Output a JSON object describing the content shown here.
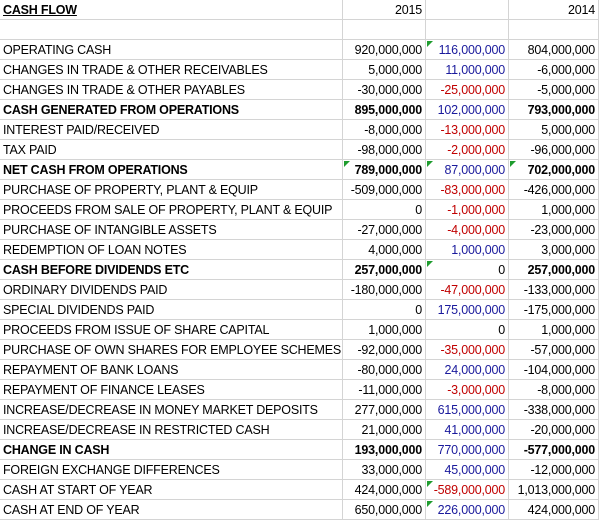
{
  "header": {
    "title": "CASH FLOW",
    "year_1": "2015",
    "year_2": "2014"
  },
  "table": {
    "rows": [
      [
        "OPERATING CASH",
        "920,000,000",
        "116,000,000",
        "804,000,000"
      ],
      [
        "CHANGES IN TRADE & OTHER RECEIVABLES",
        "5,000,000",
        "11,000,000",
        "-6,000,000"
      ],
      [
        "CHANGES IN TRADE & OTHER PAYABLES",
        "-30,000,000",
        "-25,000,000",
        "-5,000,000"
      ],
      [
        "CASH GENERATED FROM OPERATIONS",
        "895,000,000",
        "102,000,000",
        "793,000,000"
      ],
      [
        "INTEREST PAID/RECEIVED",
        "-8,000,000",
        "-13,000,000",
        "5,000,000"
      ],
      [
        "TAX PAID",
        "-98,000,000",
        "-2,000,000",
        "-96,000,000"
      ],
      [
        "NET CASH FROM OPERATIONS",
        "789,000,000",
        "87,000,000",
        "702,000,000"
      ],
      [
        "PURCHASE OF PROPERTY, PLANT & EQUIP",
        "-509,000,000",
        "-83,000,000",
        "-426,000,000"
      ],
      [
        "PROCEEDS FROM SALE OF PROPERTY, PLANT & EQUIP",
        "0",
        "-1,000,000",
        "1,000,000"
      ],
      [
        "PURCHASE OF INTANGIBLE ASSETS",
        "-27,000,000",
        "-4,000,000",
        "-23,000,000"
      ],
      [
        "REDEMPTION OF LOAN NOTES",
        "4,000,000",
        "1,000,000",
        "3,000,000"
      ],
      [
        "CASH BEFORE DIVIDENDS ETC",
        "257,000,000",
        "0",
        "257,000,000"
      ],
      [
        "ORDINARY DIVIDENDS PAID",
        "-180,000,000",
        "-47,000,000",
        "-133,000,000"
      ],
      [
        "SPECIAL DIVIDENDS PAID",
        "0",
        "175,000,000",
        "-175,000,000"
      ],
      [
        "PROCEEDS FROM ISSUE OF SHARE CAPITAL",
        "1,000,000",
        "0",
        "1,000,000"
      ],
      [
        "PURCHASE OF OWN SHARES FOR EMPLOYEE SCHEMES",
        "-92,000,000",
        "-35,000,000",
        "-57,000,000"
      ],
      [
        "REPAYMENT OF BANK LOANS",
        "-80,000,000",
        "24,000,000",
        "-104,000,000"
      ],
      [
        "REPAYMENT OF FINANCE LEASES",
        "-11,000,000",
        "-3,000,000",
        "-8,000,000"
      ],
      [
        "INCREASE/DECREASE IN MONEY MARKET DEPOSITS",
        "277,000,000",
        "615,000,000",
        "-338,000,000"
      ],
      [
        "INCREASE/DECREASE IN RESTRICTED CASH",
        "21,000,000",
        "41,000,000",
        "-20,000,000"
      ],
      [
        "CHANGE IN CASH",
        "193,000,000",
        "770,000,000",
        "-577,000,000"
      ],
      [
        "FOREIGN EXCHANGE DIFFERENCES",
        "33,000,000",
        "45,000,000",
        "-12,000,000"
      ],
      [
        "CASH AT START OF YEAR",
        "424,000,000",
        "-589,000,000",
        "1,013,000,000"
      ],
      [
        "CASH AT END OF YEAR",
        "650,000,000",
        "226,000,000",
        "424,000,000"
      ]
    ]
  }
}
